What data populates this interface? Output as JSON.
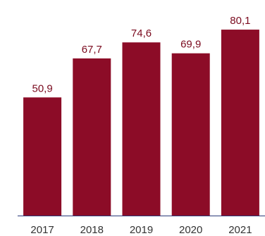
{
  "chart_data": {
    "type": "bar",
    "categories": [
      "2017",
      "2018",
      "2019",
      "2020",
      "2021"
    ],
    "values": [
      50.9,
      67.7,
      74.6,
      69.9,
      80.1
    ],
    "value_labels": [
      "50,9",
      "67,7",
      "74,6",
      "69,9",
      "80,1"
    ],
    "title": "",
    "xlabel": "",
    "ylabel": "",
    "ylim": [
      0,
      87.4
    ],
    "grid": false,
    "legend": "none",
    "colors": {
      "bar": "#8c0c27",
      "axis": "#2a3a7a",
      "label": "#7a0a1e"
    }
  }
}
